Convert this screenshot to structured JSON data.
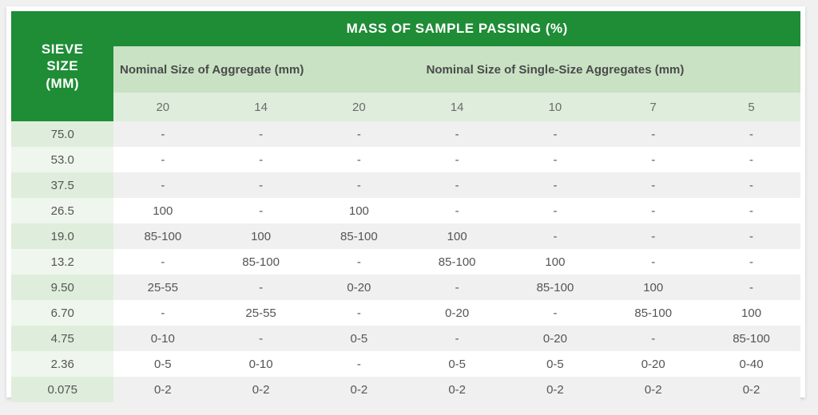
{
  "table": {
    "type": "table",
    "corner_label_line1": "SIEVE",
    "corner_label_line2": "SIZE",
    "corner_label_line3": "(MM)",
    "top_header": "MASS OF SAMPLE PASSING (%)",
    "group_headers": [
      "Nominal Size of Aggregate (mm)",
      "Nominal Size of Single-Size Aggregates (mm)"
    ],
    "column_sizes": [
      "20",
      "14",
      "20",
      "14",
      "10",
      "7",
      "5"
    ],
    "group_spans": [
      2,
      5
    ],
    "sieve_sizes": [
      "75.0",
      "53.0",
      "37.5",
      "26.5",
      "19.0",
      "13.2",
      "9.50",
      "6.70",
      "4.75",
      "2.36",
      "0.075"
    ],
    "rows": [
      [
        "-",
        "-",
        "-",
        "-",
        "-",
        "-",
        "-"
      ],
      [
        "-",
        "-",
        "-",
        "-",
        "-",
        "-",
        "-"
      ],
      [
        "-",
        "-",
        "-",
        "-",
        "-",
        "-",
        "-"
      ],
      [
        "100",
        "-",
        "100",
        "-",
        "-",
        "-",
        "-"
      ],
      [
        "85-100",
        "100",
        "85-100",
        "100",
        "-",
        "-",
        "-"
      ],
      [
        "-",
        "85-100",
        "-",
        "85-100",
        "100",
        "-",
        "-"
      ],
      [
        "25-55",
        "-",
        "0-20",
        "-",
        "85-100",
        "100",
        "-"
      ],
      [
        "-",
        "25-55",
        "-",
        "0-20",
        "-",
        "85-100",
        "100"
      ],
      [
        "0-10",
        "-",
        "0-5",
        "-",
        "0-20",
        "-",
        "85-100"
      ],
      [
        "0-5",
        "0-10",
        "-",
        "0-5",
        "0-5",
        "0-20",
        "0-40"
      ],
      [
        "0-2",
        "0-2",
        "0-2",
        "0-2",
        "0-2",
        "0-2",
        "0-2"
      ]
    ],
    "colors": {
      "brand_green": "#1f8c36",
      "header_light": "#c9e2c4",
      "header_lighter": "#dfeedc",
      "sieve_odd": "#dfeedc",
      "sieve_even": "#eff6ed",
      "data_odd": "#f0f0f0",
      "data_even": "#ffffff",
      "text_body": "#555555",
      "text_header_dark": "#4a4a4a"
    },
    "column_widths_pct": [
      13,
      12.43,
      12.43,
      12.43,
      12.43,
      12.43,
      12.43,
      12.43
    ],
    "font": {
      "header_size_pt": 13,
      "group_header_size_pt": 11,
      "body_size_pt": 11
    }
  }
}
